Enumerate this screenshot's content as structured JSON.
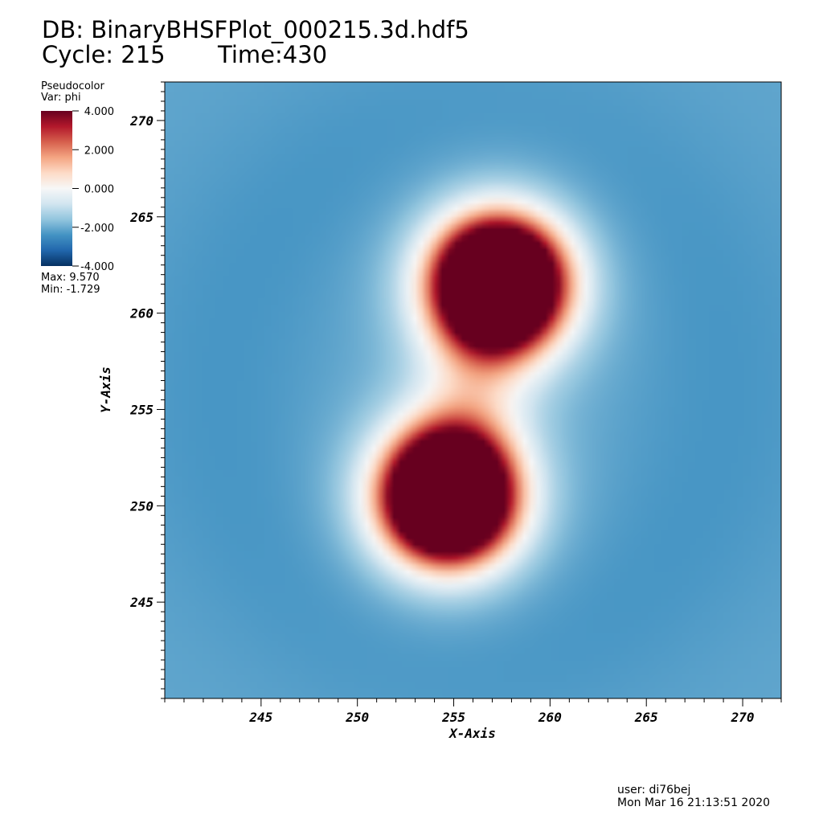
{
  "header": {
    "db_label": "DB:",
    "db_name": "BinaryBHSFPlot_000215.3d.hdf5",
    "cycle_label": "Cycle:",
    "cycle": "215",
    "time_label": "Time:",
    "time": "430"
  },
  "legend": {
    "plot_type": "Pseudocolor",
    "var_line": "Var: phi",
    "max_line": "Max:  9.570",
    "min_line": "Min: -1.729",
    "ticks": [
      "4.000",
      "2.000",
      "0.000",
      "-2.000",
      "-4.000"
    ],
    "colormap": [
      "#053061",
      "#2166ac",
      "#4393c3",
      "#92c5de",
      "#d1e5f0",
      "#f7f7f7",
      "#fddbc7",
      "#f4a582",
      "#d6604d",
      "#b2182b",
      "#67001f"
    ]
  },
  "footer": {
    "user": "user: di76bej",
    "date": "Mon Mar 16 21:13:51 2020"
  },
  "chart_data": {
    "type": "heatmap",
    "xlabel": "X-Axis",
    "ylabel": "Y-Axis",
    "xlim": [
      240,
      272
    ],
    "ylim": [
      240,
      272
    ],
    "xticks": [
      245,
      250,
      255,
      260,
      265,
      270
    ],
    "yticks": [
      245,
      250,
      255,
      260,
      265,
      270
    ],
    "color_range": [
      -4.0,
      4.0
    ],
    "data_max": 9.57,
    "data_min": -1.729,
    "sources": [
      {
        "name": "",
        "x": 257.3,
        "y": 261.5,
        "peak": 9.57
      },
      {
        "name": "",
        "x": 254.7,
        "y": 250.5,
        "peak": 9.57
      }
    ]
  }
}
